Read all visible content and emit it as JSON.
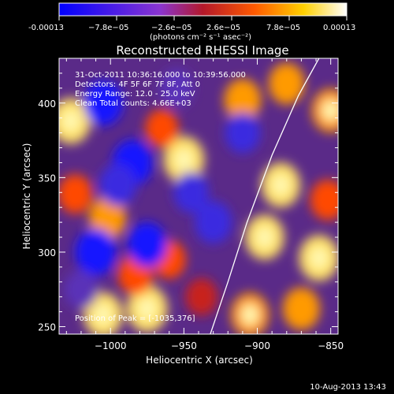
{
  "colorbar": {
    "tick_labels": [
      "-0.00013",
      "−7.8e−05",
      "−2.6e−05",
      "2.6e−05",
      "7.8e−05",
      "0.00013"
    ],
    "unit_label": "(photons cm⁻² s⁻¹ asec⁻²)",
    "colors": [
      "#0000ff",
      "#7a2fd0",
      "#c01a18",
      "#ff6a00",
      "#ffd000",
      "#ffffff"
    ]
  },
  "chart_data": {
    "type": "heatmap",
    "title": "Reconstructed RHESSI Image",
    "xlabel": "Heliocentric X (arcsec)",
    "ylabel": "Heliocentric Y (arcsec)",
    "xlim": [
      -1035,
      -845
    ],
    "ylim": [
      245,
      430
    ],
    "x_ticks": [
      -1000,
      -950,
      -900,
      -850
    ],
    "x_tick_labels": [
      "−1000",
      "−950",
      "−900",
      "−850"
    ],
    "y_ticks": [
      250,
      300,
      350,
      400
    ],
    "y_tick_labels": [
      "250",
      "300",
      "350",
      "400"
    ],
    "blobs": [
      {
        "x": -950,
        "y": 362,
        "v": 1.0
      },
      {
        "x": -965,
        "y": 383,
        "v": 0.6
      },
      {
        "x": -1027,
        "y": 388,
        "v": 0.95
      },
      {
        "x": -1024,
        "y": 339,
        "v": 0.65
      },
      {
        "x": -1002,
        "y": 323,
        "v": 0.8
      },
      {
        "x": -975,
        "y": 262,
        "v": 1.0
      },
      {
        "x": -1005,
        "y": 258,
        "v": 0.9
      },
      {
        "x": -983,
        "y": 285,
        "v": 0.7
      },
      {
        "x": -960,
        "y": 295,
        "v": 0.6
      },
      {
        "x": -938,
        "y": 270,
        "v": 0.55
      },
      {
        "x": -910,
        "y": 402,
        "v": 0.8
      },
      {
        "x": -880,
        "y": 413,
        "v": 0.75
      },
      {
        "x": -850,
        "y": 395,
        "v": 0.85
      },
      {
        "x": -884,
        "y": 345,
        "v": 0.9
      },
      {
        "x": -852,
        "y": 335,
        "v": 0.7
      },
      {
        "x": -895,
        "y": 310,
        "v": 0.9
      },
      {
        "x": -858,
        "y": 296,
        "v": 0.95
      },
      {
        "x": -870,
        "y": 262,
        "v": 0.8
      },
      {
        "x": -905,
        "y": 258,
        "v": 0.85
      },
      {
        "x": -1005,
        "y": 400,
        "v": -0.9
      },
      {
        "x": -985,
        "y": 360,
        "v": -0.95
      },
      {
        "x": -995,
        "y": 345,
        "v": -0.8
      },
      {
        "x": -1010,
        "y": 300,
        "v": -1.0
      },
      {
        "x": -975,
        "y": 305,
        "v": -0.9
      },
      {
        "x": -930,
        "y": 320,
        "v": -0.8
      },
      {
        "x": -945,
        "y": 340,
        "v": -0.7
      },
      {
        "x": -910,
        "y": 380,
        "v": -0.7
      },
      {
        "x": -1020,
        "y": 275,
        "v": -0.6
      },
      {
        "x": -955,
        "y": 410,
        "v": -0.6
      }
    ],
    "limb_curve": [
      {
        "x": -932,
        "y": 245
      },
      {
        "x": -920,
        "y": 280
      },
      {
        "x": -907,
        "y": 320
      },
      {
        "x": -890,
        "y": 365
      },
      {
        "x": -872,
        "y": 405
      },
      {
        "x": -858,
        "y": 430
      }
    ]
  },
  "info": {
    "line1": "31-Oct-2011 10:36:16.000 to 10:39:56.000",
    "line2": "Detectors: 4F 5F 6F 7F 8F, Att 0",
    "line3": "Energy Range: 12.0 - 25.0 keV",
    "line4": "Clean     Total counts: 4.66E+03"
  },
  "peak_label": "Position of Peak = [-1035,376]",
  "footer_date": "10-Aug-2013 13:43"
}
